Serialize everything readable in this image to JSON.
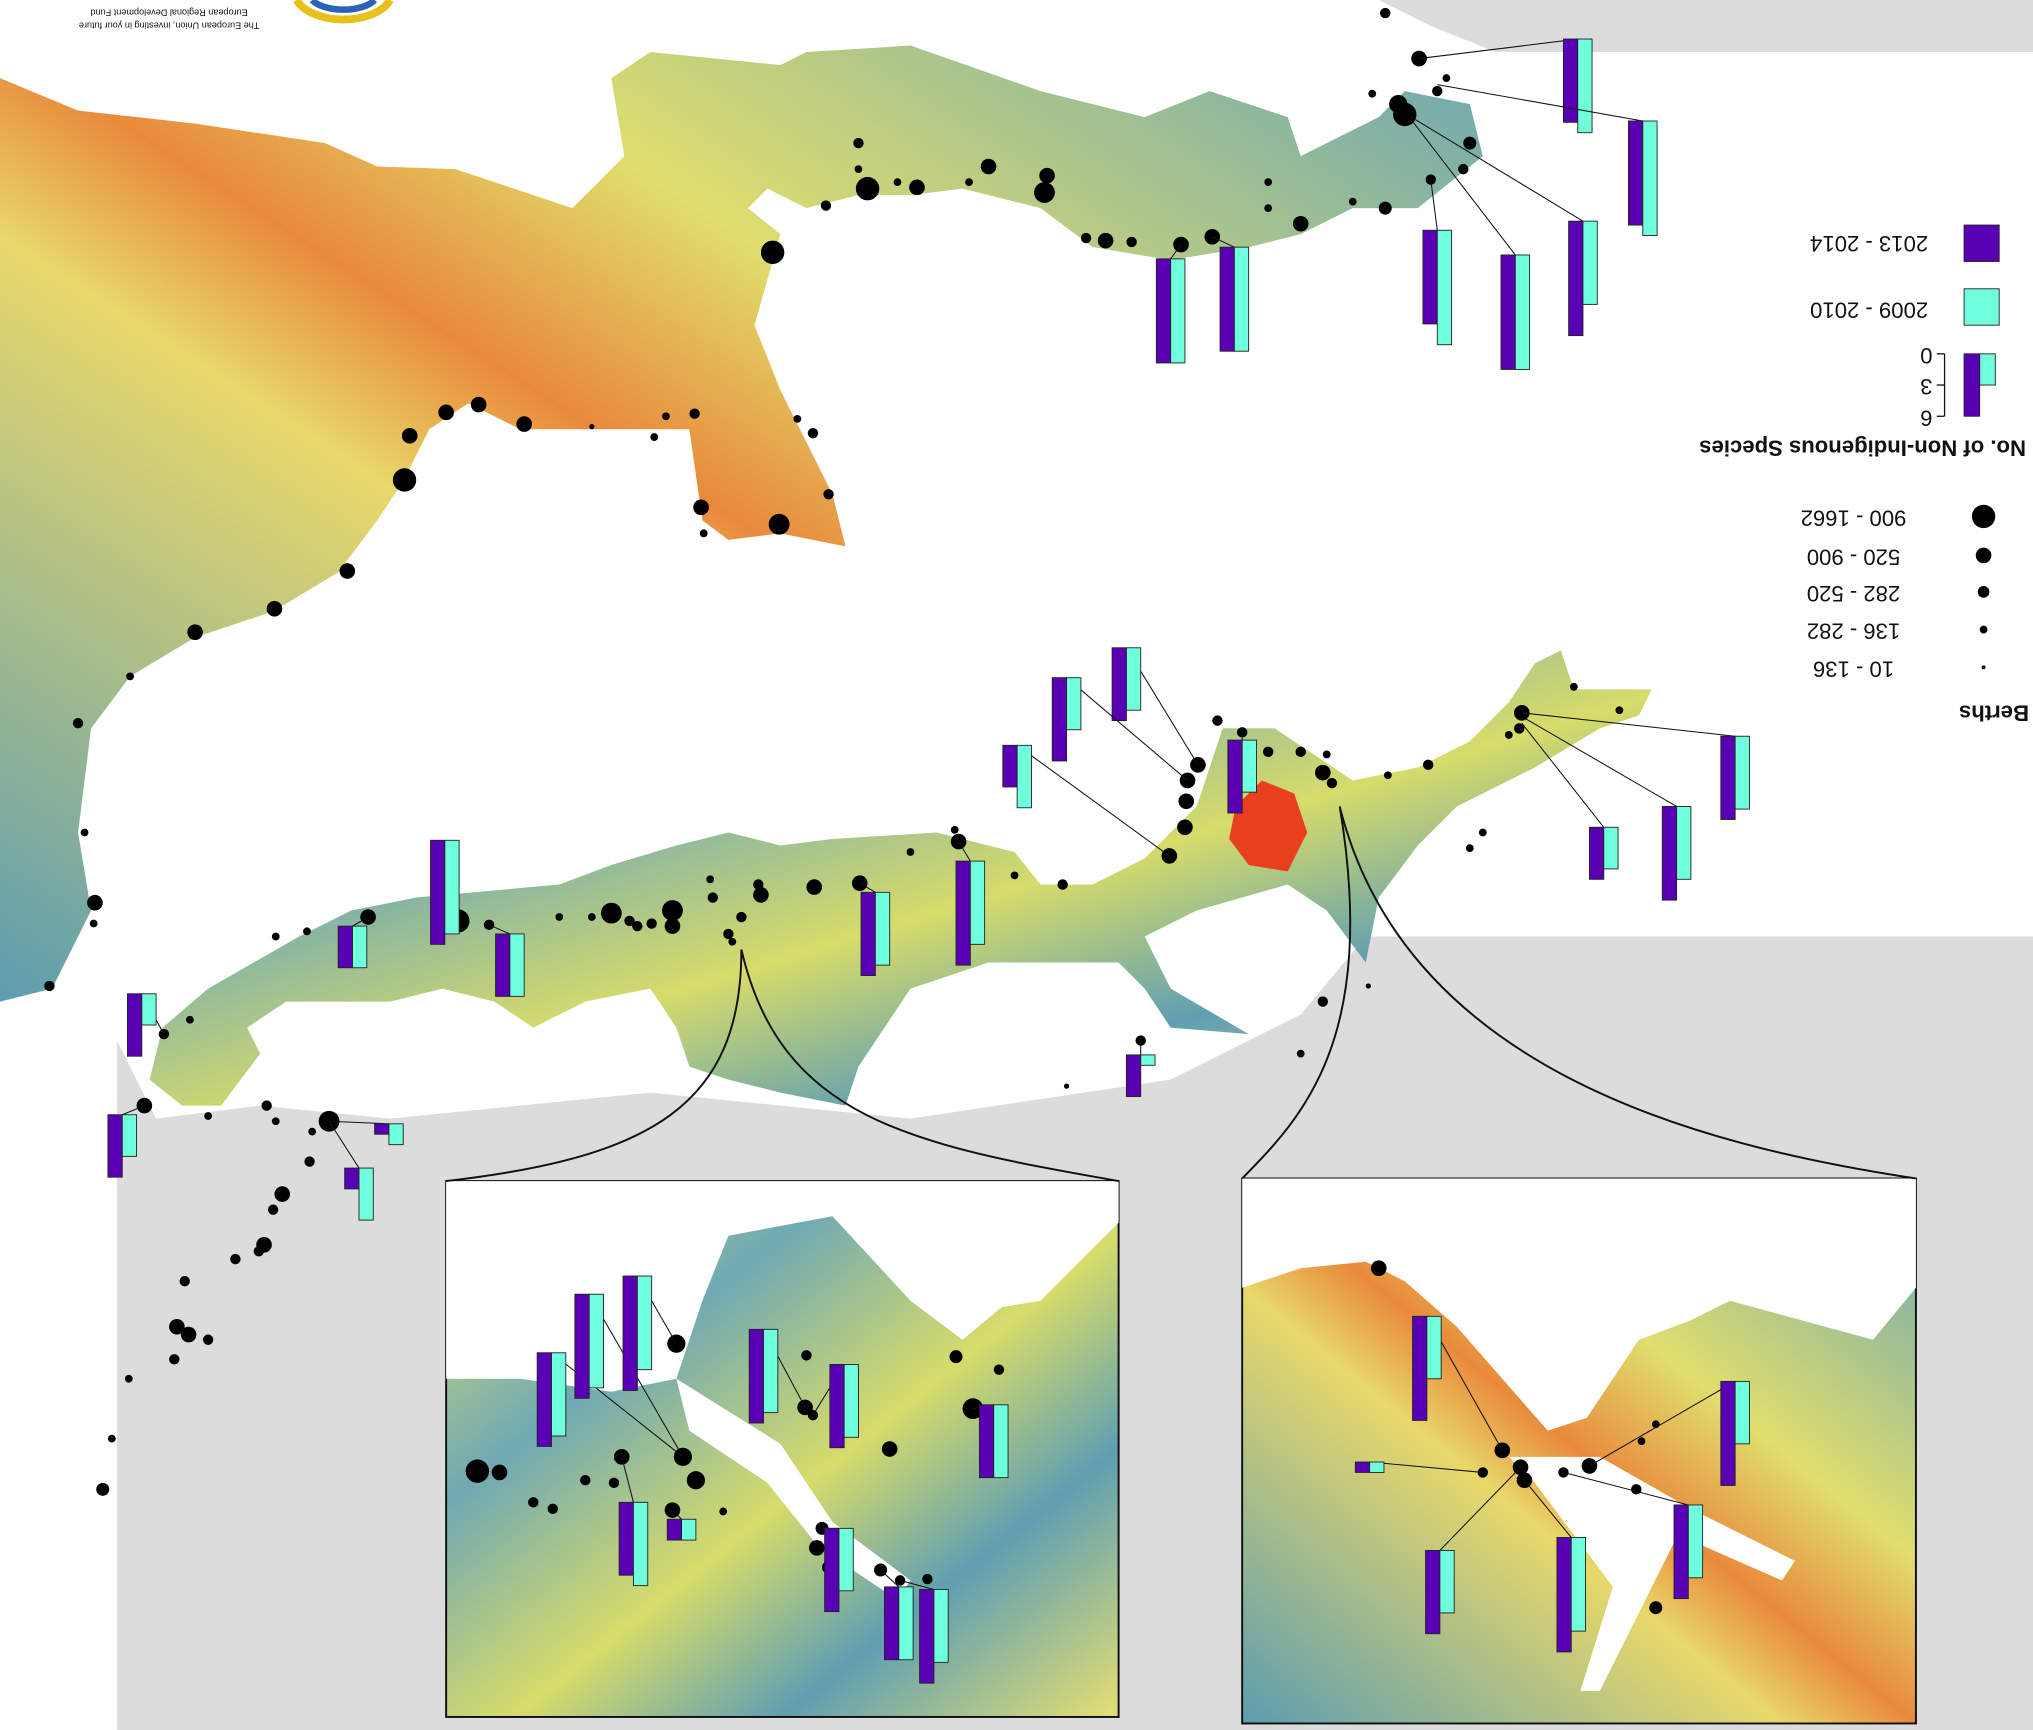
{
  "logo": {
    "line1": "European Regional Development Fund",
    "line2": "The European Union, investing in your future"
  },
  "legend": {
    "berths": {
      "title": "Berths",
      "classes": [
        "10 - 136",
        "136 - 282",
        "282 - 520",
        "520 - 900",
        "900 - 1662"
      ]
    },
    "nis": {
      "title": "No. of Non-Indigenous Species",
      "scale_ticks": [
        0,
        3,
        6
      ]
    }
  },
  "bars": {
    "series": [
      {
        "name": "2009 - 2010",
        "color": "#6fffdc",
        "values": [
          9,
          11,
          8,
          11,
          11,
          10,
          10,
          7,
          7,
          4,
          5,
          6,
          5,
          6,
          8,
          7,
          1,
          9,
          6,
          4,
          3,
          4,
          5,
          2,
          8,
          9,
          9,
          8,
          7,
          7,
          8,
          2,
          6,
          7,
          7,
          6,
          6,
          1,
          7,
          6,
          9
        ]
      },
      {
        "name": "2013 - 2014",
        "color": "#5a00b4",
        "values": [
          8,
          10,
          11,
          11,
          9,
          10,
          10,
          8,
          9,
          5,
          7,
          7,
          8,
          4,
          10,
          8,
          4,
          10,
          6,
          4,
          6,
          6,
          2,
          1,
          9,
          10,
          11,
          9,
          8,
          7,
          7,
          2,
          8,
          7,
          9,
          10,
          10,
          1,
          9,
          8,
          11
        ]
      }
    ]
  }
}
